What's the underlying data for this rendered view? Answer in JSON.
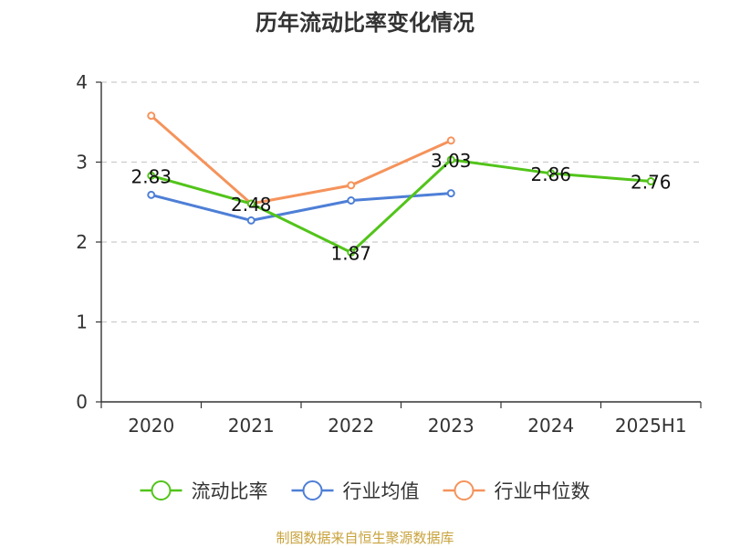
{
  "chart_data": {
    "type": "line",
    "title": "历年流动比率变化情况",
    "categories": [
      "2020",
      "2021",
      "2022",
      "2023",
      "2024",
      "2025H1"
    ],
    "ylim": [
      0,
      4
    ],
    "yticks": [
      "0",
      "1",
      "2",
      "3",
      "4"
    ],
    "grid": true,
    "legend_position": "bottom",
    "series": [
      {
        "name": "流动比率",
        "color": "#52c41a",
        "values": [
          2.83,
          2.48,
          1.87,
          3.03,
          2.86,
          2.76
        ],
        "labels": [
          "2.83",
          "2.48",
          "1.87",
          "3.03",
          "2.86",
          "2.76"
        ]
      },
      {
        "name": "行业均值",
        "color": "#4e7fd6",
        "values": [
          2.59,
          2.27,
          2.52,
          2.61,
          null,
          null
        ]
      },
      {
        "name": "行业中位数",
        "color": "#f5935b",
        "values": [
          3.58,
          2.48,
          2.71,
          3.27,
          null,
          null
        ]
      }
    ]
  },
  "footer": {
    "text": "制图数据来自恒生聚源数据库",
    "color": "#c8a23c"
  }
}
